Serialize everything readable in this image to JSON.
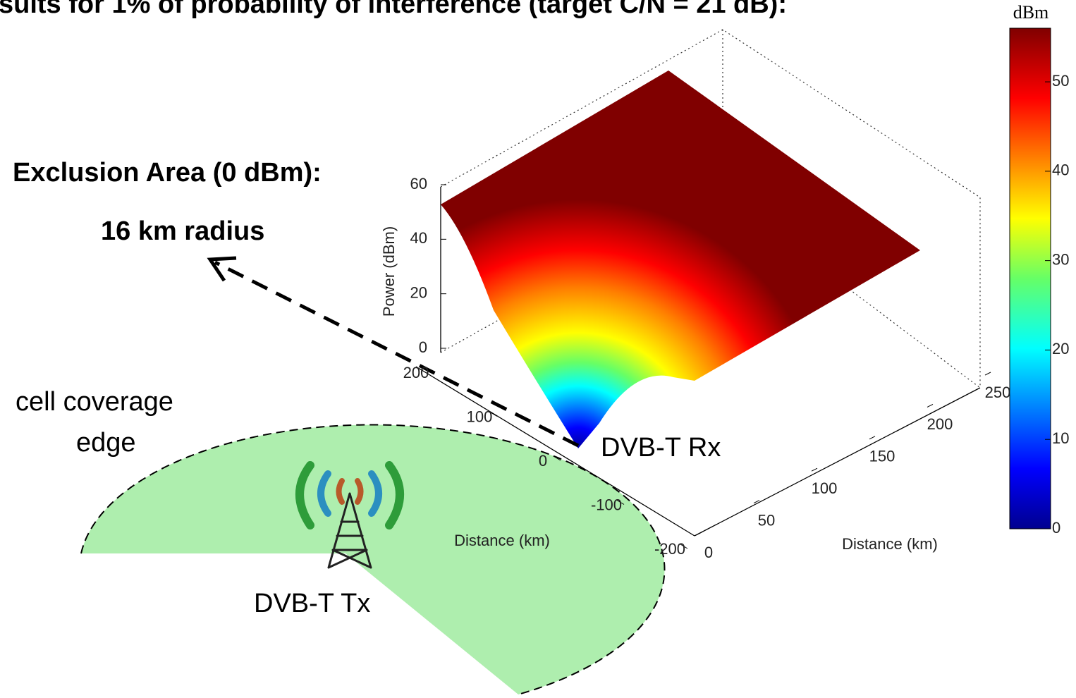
{
  "chart_data": {
    "type": "surface",
    "title": "sults for 1% of probability of interference (target C/N = 21 dB):",
    "zlabel": "Power (dBm)",
    "zlim": [
      0,
      60
    ],
    "zticks": [
      0,
      20,
      40,
      60
    ],
    "ylabel": "Distance (km)",
    "ylim": [
      -200,
      200
    ],
    "yticks": [
      -200,
      -100,
      0,
      100,
      200
    ],
    "xlabel": "Distance (km)",
    "xlim": [
      0,
      250
    ],
    "xticks": [
      0,
      50,
      100,
      150,
      200,
      250
    ],
    "colorbar": {
      "label": "dBm",
      "lim": [
        0,
        56
      ],
      "ticks": [
        0,
        10,
        20,
        30,
        40,
        50
      ]
    },
    "annotations": {
      "exclusion": "Exclusion Area (0 dBm):",
      "radius": "16 km radius",
      "coverage_line1": "cell coverage",
      "coverage_line2": "edge",
      "rx": "DVB-T Rx",
      "tx": "DVB-T Tx"
    }
  }
}
